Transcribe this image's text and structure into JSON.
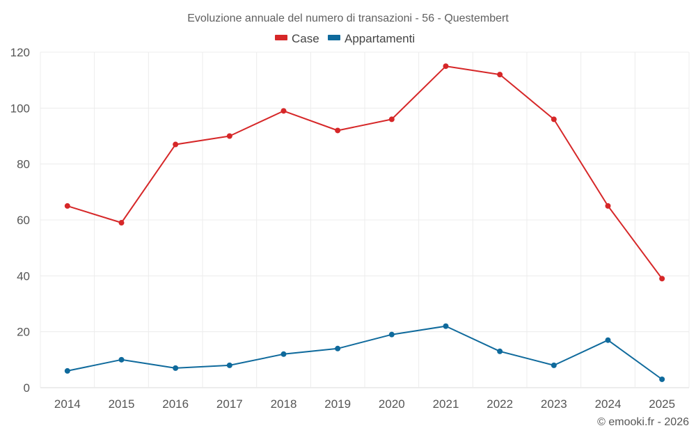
{
  "colors": {
    "case": "#d62728",
    "appartamenti": "#0f6a9c"
  },
  "credit": "© emooki.fr - 2026",
  "chart_data": {
    "type": "line",
    "title": "Evoluzione annuale del numero di transazioni - 56 - Questembert",
    "xlabel": "",
    "ylabel": "",
    "categories": [
      "2014",
      "2015",
      "2016",
      "2017",
      "2018",
      "2019",
      "2020",
      "2021",
      "2022",
      "2023",
      "2024",
      "2025"
    ],
    "ylim": [
      0,
      120
    ],
    "yticks": [
      "0",
      "20",
      "40",
      "60",
      "80",
      "100",
      "120"
    ],
    "grid": true,
    "legend_position": "top-center",
    "series": [
      {
        "name": "Case",
        "values": [
          65,
          59,
          87,
          90,
          99,
          92,
          96,
          115,
          112,
          96,
          65,
          39
        ]
      },
      {
        "name": "Appartamenti",
        "values": [
          6,
          10,
          7,
          8,
          12,
          14,
          19,
          22,
          13,
          8,
          17,
          3
        ]
      }
    ]
  }
}
